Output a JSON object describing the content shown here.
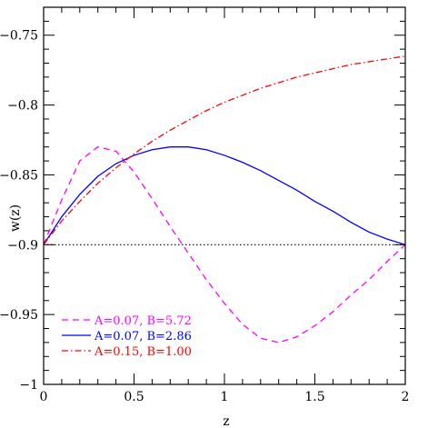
{
  "chart_data": {
    "type": "line",
    "xlabel": "z",
    "ylabel": "w(z)",
    "xlim": [
      0,
      2
    ],
    "ylim": [
      -1,
      -0.73
    ],
    "xticks": [
      0,
      0.5,
      1,
      1.5,
      2
    ],
    "xtick_labels": [
      "0",
      "0.5",
      "1",
      "1.5",
      "2"
    ],
    "yticks": [
      -1,
      -0.95,
      -0.9,
      -0.85,
      -0.8,
      -0.75
    ],
    "ytick_labels": [
      "−1",
      "−0.95",
      "−0.9",
      "−0.85",
      "−0.8",
      "−0.75"
    ],
    "grid": false,
    "legend_position": "bottom-left",
    "reference_line": {
      "y": -0.9,
      "style": "dotted",
      "color": "#000000"
    },
    "series": [
      {
        "name": "A=0.07, B=5.72",
        "color": "#ff00ff",
        "style": "dashed",
        "x": [
          0,
          0.1,
          0.2,
          0.3,
          0.4,
          0.5,
          0.6,
          0.7,
          0.8,
          0.9,
          1.0,
          1.1,
          1.2,
          1.3,
          1.4,
          1.5,
          1.6,
          1.7,
          1.8,
          1.9,
          2.0
        ],
        "y": [
          -0.9,
          -0.868,
          -0.84,
          -0.83,
          -0.833,
          -0.848,
          -0.867,
          -0.887,
          -0.906,
          -0.925,
          -0.942,
          -0.957,
          -0.967,
          -0.97,
          -0.966,
          -0.958,
          -0.948,
          -0.936,
          -0.925,
          -0.912,
          -0.9
        ]
      },
      {
        "name": "A=0.07, B=2.86",
        "color": "#0000ff",
        "style": "solid",
        "x": [
          0,
          0.1,
          0.2,
          0.3,
          0.4,
          0.5,
          0.6,
          0.7,
          0.8,
          0.9,
          1.0,
          1.1,
          1.2,
          1.3,
          1.4,
          1.5,
          1.6,
          1.7,
          1.8,
          1.9,
          2.0
        ],
        "y": [
          -0.9,
          -0.88,
          -0.864,
          -0.851,
          -0.842,
          -0.836,
          -0.832,
          -0.83,
          -0.83,
          -0.832,
          -0.836,
          -0.841,
          -0.847,
          -0.854,
          -0.861,
          -0.869,
          -0.876,
          -0.884,
          -0.891,
          -0.896,
          -0.9
        ]
      },
      {
        "name": "A=0.15, B=1.00",
        "color": "#ff0000",
        "style": "dashdot",
        "x": [
          0,
          0.1,
          0.2,
          0.3,
          0.4,
          0.5,
          0.6,
          0.7,
          0.8,
          0.9,
          1.0,
          1.1,
          1.2,
          1.3,
          1.4,
          1.5,
          1.6,
          1.7,
          1.8,
          1.9,
          2.0
        ],
        "y": [
          -0.9,
          -0.883,
          -0.869,
          -0.856,
          -0.845,
          -0.835,
          -0.826,
          -0.818,
          -0.811,
          -0.804,
          -0.798,
          -0.793,
          -0.788,
          -0.784,
          -0.78,
          -0.777,
          -0.774,
          -0.771,
          -0.769,
          -0.767,
          -0.765
        ]
      }
    ]
  }
}
